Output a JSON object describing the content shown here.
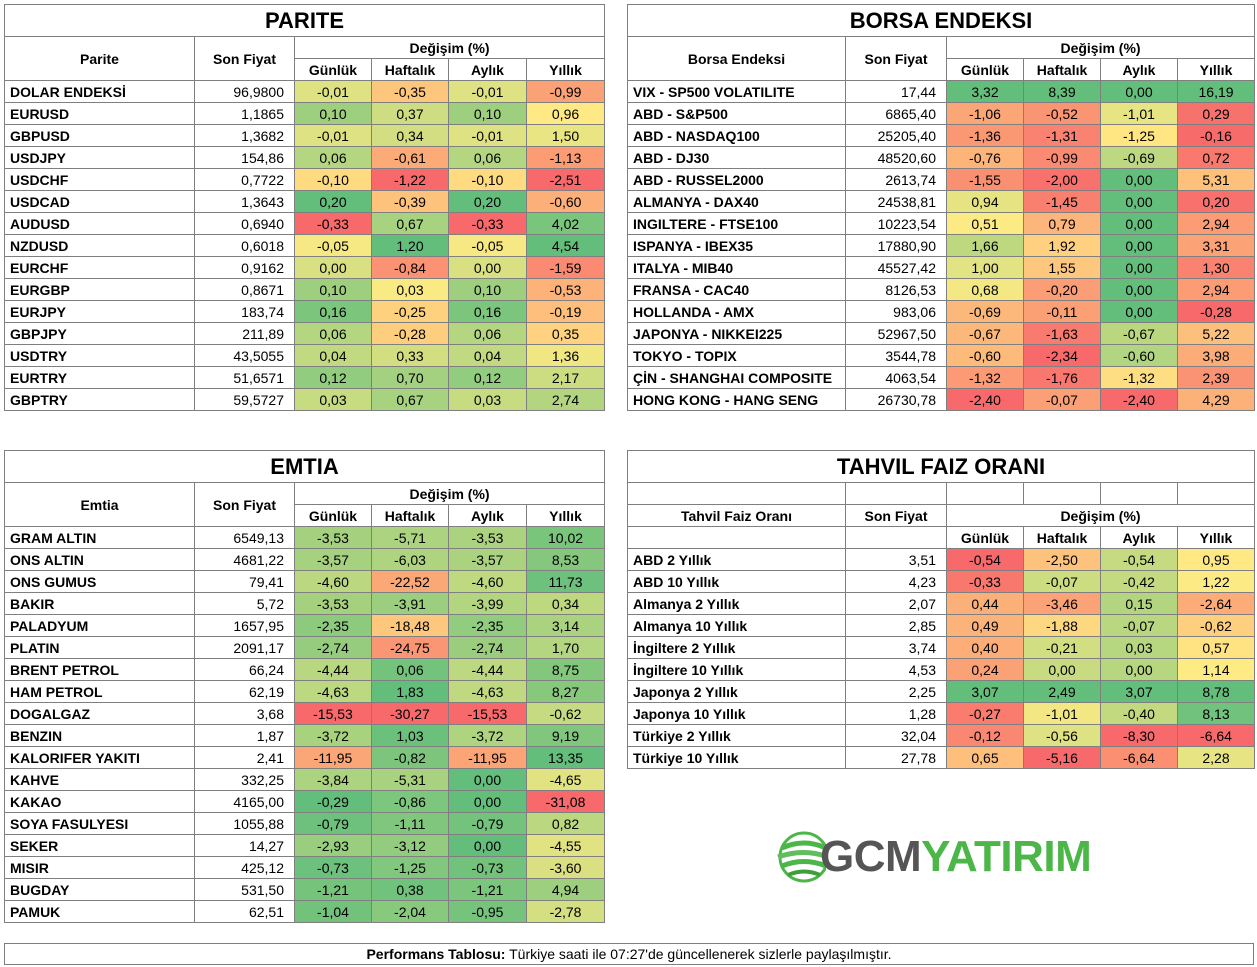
{
  "parite": {
    "title": "PARITE",
    "col_name": "Parite",
    "col_price": "Son Fiyat",
    "col_change": "Değişim (%)",
    "periods": [
      "Günlük",
      "Haftalık",
      "Aylık",
      "Yıllık"
    ],
    "rows": [
      {
        "name": "DOLAR ENDEKSİ",
        "price": "96,9800",
        "d": "-0,01",
        "w": "-0,35",
        "m": "-0,01",
        "y": "-0,99"
      },
      {
        "name": "EURUSD",
        "price": "1,1865",
        "d": "0,10",
        "w": "0,37",
        "m": "0,10",
        "y": "0,96"
      },
      {
        "name": "GBPUSD",
        "price": "1,3682",
        "d": "-0,01",
        "w": "0,34",
        "m": "-0,01",
        "y": "1,50"
      },
      {
        "name": "USDJPY",
        "price": "154,86",
        "d": "0,06",
        "w": "-0,61",
        "m": "0,06",
        "y": "-1,13"
      },
      {
        "name": "USDCHF",
        "price": "0,7722",
        "d": "-0,10",
        "w": "-1,22",
        "m": "-0,10",
        "y": "-2,51"
      },
      {
        "name": "USDCAD",
        "price": "1,3643",
        "d": "0,20",
        "w": "-0,39",
        "m": "0,20",
        "y": "-0,60"
      },
      {
        "name": "AUDUSD",
        "price": "0,6940",
        "d": "-0,33",
        "w": "0,67",
        "m": "-0,33",
        "y": "4,02"
      },
      {
        "name": "NZDUSD",
        "price": "0,6018",
        "d": "-0,05",
        "w": "1,20",
        "m": "-0,05",
        "y": "4,54"
      },
      {
        "name": "EURCHF",
        "price": "0,9162",
        "d": "0,00",
        "w": "-0,84",
        "m": "0,00",
        "y": "-1,59"
      },
      {
        "name": "EURGBP",
        "price": "0,8671",
        "d": "0,10",
        "w": "0,03",
        "m": "0,10",
        "y": "-0,53"
      },
      {
        "name": "EURJPY",
        "price": "183,74",
        "d": "0,16",
        "w": "-0,25",
        "m": "0,16",
        "y": "-0,19"
      },
      {
        "name": "GBPJPY",
        "price": "211,89",
        "d": "0,06",
        "w": "-0,28",
        "m": "0,06",
        "y": "0,35"
      },
      {
        "name": "USDTRY",
        "price": "43,5055",
        "d": "0,04",
        "w": "0,33",
        "m": "0,04",
        "y": "1,36"
      },
      {
        "name": "EURTRY",
        "price": "51,6571",
        "d": "0,12",
        "w": "0,70",
        "m": "0,12",
        "y": "2,17"
      },
      {
        "name": "GBPTRY",
        "price": "59,5727",
        "d": "0,03",
        "w": "0,67",
        "m": "0,03",
        "y": "2,74"
      }
    ]
  },
  "borsa": {
    "title": "BORSA ENDEKSI",
    "col_name": "Borsa Endeksi",
    "col_price": "Son Fiyat",
    "col_change": "Değişim (%)",
    "periods": [
      "Günlük",
      "Haftalık",
      "Aylık",
      "Yıllık"
    ],
    "rows": [
      {
        "name": "VIX  - SP500 VOLATILITE",
        "price": "17,44",
        "d": "3,32",
        "w": "8,39",
        "m": "0,00",
        "y": "16,19"
      },
      {
        "name": "ABD - S&P500",
        "price": "6865,40",
        "d": "-1,06",
        "w": "-0,52",
        "m": "-1,01",
        "y": "0,29"
      },
      {
        "name": "ABD - NASDAQ100",
        "price": "25205,40",
        "d": "-1,36",
        "w": "-1,31",
        "m": "-1,25",
        "y": "-0,16"
      },
      {
        "name": "ABD - DJ30",
        "price": "48520,60",
        "d": "-0,76",
        "w": "-0,99",
        "m": "-0,69",
        "y": "0,72"
      },
      {
        "name": "ABD - RUSSEL2000",
        "price": "2613,74",
        "d": "-1,55",
        "w": "-2,00",
        "m": "0,00",
        "y": "5,31"
      },
      {
        "name": "ALMANYA - DAX40",
        "price": "24538,81",
        "d": "0,94",
        "w": "-1,45",
        "m": "0,00",
        "y": "0,20"
      },
      {
        "name": "INGILTERE - FTSE100",
        "price": "10223,54",
        "d": "0,51",
        "w": "0,79",
        "m": "0,00",
        "y": "2,94"
      },
      {
        "name": "ISPANYA - IBEX35",
        "price": "17880,90",
        "d": "1,66",
        "w": "1,92",
        "m": "0,00",
        "y": "3,31"
      },
      {
        "name": "ITALYA - MIB40",
        "price": "45527,42",
        "d": "1,00",
        "w": "1,55",
        "m": "0,00",
        "y": "1,30"
      },
      {
        "name": "FRANSA - CAC40",
        "price": "8126,53",
        "d": "0,68",
        "w": "-0,20",
        "m": "0,00",
        "y": "2,94"
      },
      {
        "name": "HOLLANDA - AMX",
        "price": "983,06",
        "d": "-0,69",
        "w": "-0,11",
        "m": "0,00",
        "y": "-0,28"
      },
      {
        "name": "JAPONYA - NIKKEI225",
        "price": "52967,50",
        "d": "-0,67",
        "w": "-1,63",
        "m": "-0,67",
        "y": "5,22"
      },
      {
        "name": "TOKYO - TOPIX",
        "price": "3544,78",
        "d": "-0,60",
        "w": "-2,34",
        "m": "-0,60",
        "y": "3,98"
      },
      {
        "name": "ÇİN - SHANGHAI COMPOSITE",
        "price": "4063,54",
        "d": "-1,32",
        "w": "-1,76",
        "m": "-1,32",
        "y": "2,39"
      },
      {
        "name": "HONG KONG - HANG SENG",
        "price": "26730,78",
        "d": "-2,40",
        "w": "-0,07",
        "m": "-2,40",
        "y": "4,29"
      }
    ]
  },
  "emtia": {
    "title": "EMTIA",
    "col_name": "Emtia",
    "col_price": "Son Fiyat",
    "col_change": "Değişim (%)",
    "periods": [
      "Günlük",
      "Haftalık",
      "Aylık",
      "Yıllık"
    ],
    "rows": [
      {
        "name": "GRAM ALTIN",
        "price": "6549,13",
        "d": "-3,53",
        "w": "-5,71",
        "m": "-3,53",
        "y": "10,02"
      },
      {
        "name": "ONS ALTIN",
        "price": "4681,22",
        "d": "-3,57",
        "w": "-6,03",
        "m": "-3,57",
        "y": "8,53"
      },
      {
        "name": "ONS GUMUS",
        "price": "79,41",
        "d": "-4,60",
        "w": "-22,52",
        "m": "-4,60",
        "y": "11,73"
      },
      {
        "name": "BAKIR",
        "price": "5,72",
        "d": "-3,53",
        "w": "-3,91",
        "m": "-3,99",
        "y": "0,34"
      },
      {
        "name": "PALADYUM",
        "price": "1657,95",
        "d": "-2,35",
        "w": "-18,48",
        "m": "-2,35",
        "y": "3,14"
      },
      {
        "name": "PLATIN",
        "price": "2091,17",
        "d": "-2,74",
        "w": "-24,75",
        "m": "-2,74",
        "y": "1,70"
      },
      {
        "name": "BRENT PETROL",
        "price": "66,24",
        "d": "-4,44",
        "w": "0,06",
        "m": "-4,44",
        "y": "8,75"
      },
      {
        "name": "HAM PETROL",
        "price": "62,19",
        "d": "-4,63",
        "w": "1,83",
        "m": "-4,63",
        "y": "8,27"
      },
      {
        "name": "DOGALGAZ",
        "price": "3,68",
        "d": "-15,53",
        "w": "-30,27",
        "m": "-15,53",
        "y": "-0,62"
      },
      {
        "name": "BENZIN",
        "price": "1,87",
        "d": "-3,72",
        "w": "1,03",
        "m": "-3,72",
        "y": "9,19"
      },
      {
        "name": "KALORIFER YAKITI",
        "price": "2,41",
        "d": "-11,95",
        "w": "-0,82",
        "m": "-11,95",
        "y": "13,35"
      },
      {
        "name": "KAHVE",
        "price": "332,25",
        "d": "-3,84",
        "w": "-5,31",
        "m": "0,00",
        "y": "-4,65"
      },
      {
        "name": "KAKAO",
        "price": "4165,00",
        "d": "-0,29",
        "w": "-0,86",
        "m": "0,00",
        "y": "-31,08"
      },
      {
        "name": "SOYA FASULYESI",
        "price": "1055,88",
        "d": "-0,79",
        "w": "-1,11",
        "m": "-0,79",
        "y": "0,82"
      },
      {
        "name": "SEKER",
        "price": "14,27",
        "d": "-2,93",
        "w": "-3,12",
        "m": "0,00",
        "y": "-4,55"
      },
      {
        "name": "MISIR",
        "price": "425,12",
        "d": "-0,73",
        "w": "-1,25",
        "m": "-0,73",
        "y": "-3,60"
      },
      {
        "name": "BUGDAY",
        "price": "531,50",
        "d": "-1,21",
        "w": "0,38",
        "m": "-1,21",
        "y": "4,94"
      },
      {
        "name": "PAMUK",
        "price": "62,51",
        "d": "-1,04",
        "w": "-2,04",
        "m": "-0,95",
        "y": "-2,78"
      }
    ]
  },
  "tahvil": {
    "title": "TAHVIL FAIZ ORANI",
    "col_name": "Tahvil Faiz Oranı",
    "col_price": "Son Fiyat",
    "col_change": "Değişim (%)",
    "periods": [
      "Günlük",
      "Haftalık",
      "Aylık",
      "Yıllık"
    ],
    "rows": [
      {
        "name": "ABD 2 Yıllık",
        "price": "3,51",
        "d": "-0,54",
        "w": "-2,50",
        "m": "-0,54",
        "y": "0,95"
      },
      {
        "name": "ABD 10 Yıllık",
        "price": "4,23",
        "d": "-0,33",
        "w": "-0,07",
        "m": "-0,42",
        "y": "1,22"
      },
      {
        "name": "Almanya 2 Yıllık",
        "price": "2,07",
        "d": "0,44",
        "w": "-3,46",
        "m": "0,15",
        "y": "-2,64"
      },
      {
        "name": "Almanya 10 Yıllık",
        "price": "2,85",
        "d": "0,49",
        "w": "-1,88",
        "m": "-0,07",
        "y": "-0,62"
      },
      {
        "name": "İngiltere 2 Yıllık",
        "price": "3,74",
        "d": "0,40",
        "w": "-0,21",
        "m": "0,03",
        "y": "0,57"
      },
      {
        "name": "İngiltere 10 Yıllık",
        "price": "4,53",
        "d": "0,24",
        "w": "0,00",
        "m": "0,00",
        "y": "1,14"
      },
      {
        "name": "Japonya 2 Yıllık",
        "price": "2,25",
        "d": "3,07",
        "w": "2,49",
        "m": "3,07",
        "y": "8,78"
      },
      {
        "name": "Japonya 10 Yıllık",
        "price": "1,28",
        "d": "-0,27",
        "w": "-1,01",
        "m": "-0,40",
        "y": "8,13"
      },
      {
        "name": "Türkiye 2 Yıllık",
        "price": "32,04",
        "d": "-0,12",
        "w": "-0,56",
        "m": "-8,30",
        "y": "-6,64"
      },
      {
        "name": "Türkiye 10 Yıllık",
        "price": "27,78",
        "d": "0,65",
        "w": "-5,16",
        "m": "-6,64",
        "y": "2,28"
      }
    ]
  },
  "logo": {
    "part1": "GCM",
    "part2": "YATIRIM"
  },
  "footer": {
    "label": "Performans Tablosu:",
    "text": " Türkiye saati ile 07:27'de güncellenerek sizlerle paylaşılmıştır."
  },
  "colors": {
    "red": "#f8696b",
    "yellow": "#ffeb84",
    "green": "#63be7b"
  }
}
